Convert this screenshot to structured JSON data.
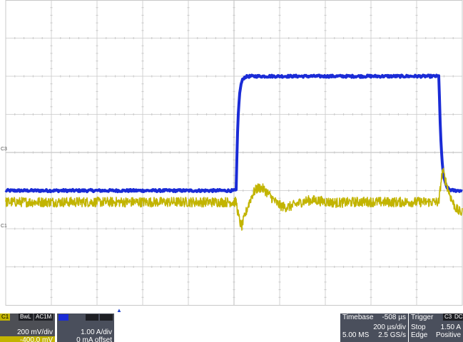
{
  "screen": {
    "background": "#ffffff",
    "grid_color": "#c8c8c8",
    "grid_divisions": {
      "horizontal": 10,
      "vertical": 8
    }
  },
  "traces": {
    "c3": {
      "label": "C3",
      "color": "#1a2bd6",
      "low_level_div": -1.0,
      "high_level_div": 2.0,
      "rise_time_div": 0.05,
      "fall_time_div": 4.49
    },
    "c1": {
      "label": "C1",
      "color": "#c2b400",
      "baseline_div": -1.3,
      "dip_div": -2.3,
      "bump_div": -0.2,
      "event1_time_div": 0.05,
      "event2_time_div": 4.49
    }
  },
  "trigger_marker": {
    "symbol": "▲",
    "color": "#2244cc"
  },
  "c1_box": {
    "channel": "C1",
    "tags": [
      "BwL",
      "AC1M"
    ],
    "scale": "200 mV/div",
    "offset": "-400.0 mV",
    "color": "#c2b400"
  },
  "c3_box": {
    "scale": "1.00 A/div",
    "offset": "0 mA offset",
    "color": "#1a2bd6"
  },
  "timebase": {
    "title": "Timebase",
    "delay": "-508 µs",
    "scale": "200 µs/div",
    "samples": "5.00 MS",
    "rate": "2.5 GS/s"
  },
  "trigger": {
    "title": "Trigger",
    "source_tag": "C3",
    "coupling_tag": "DC",
    "mode": "Stop",
    "level": "1.50 A",
    "type": "Edge",
    "slope": "Positive"
  }
}
